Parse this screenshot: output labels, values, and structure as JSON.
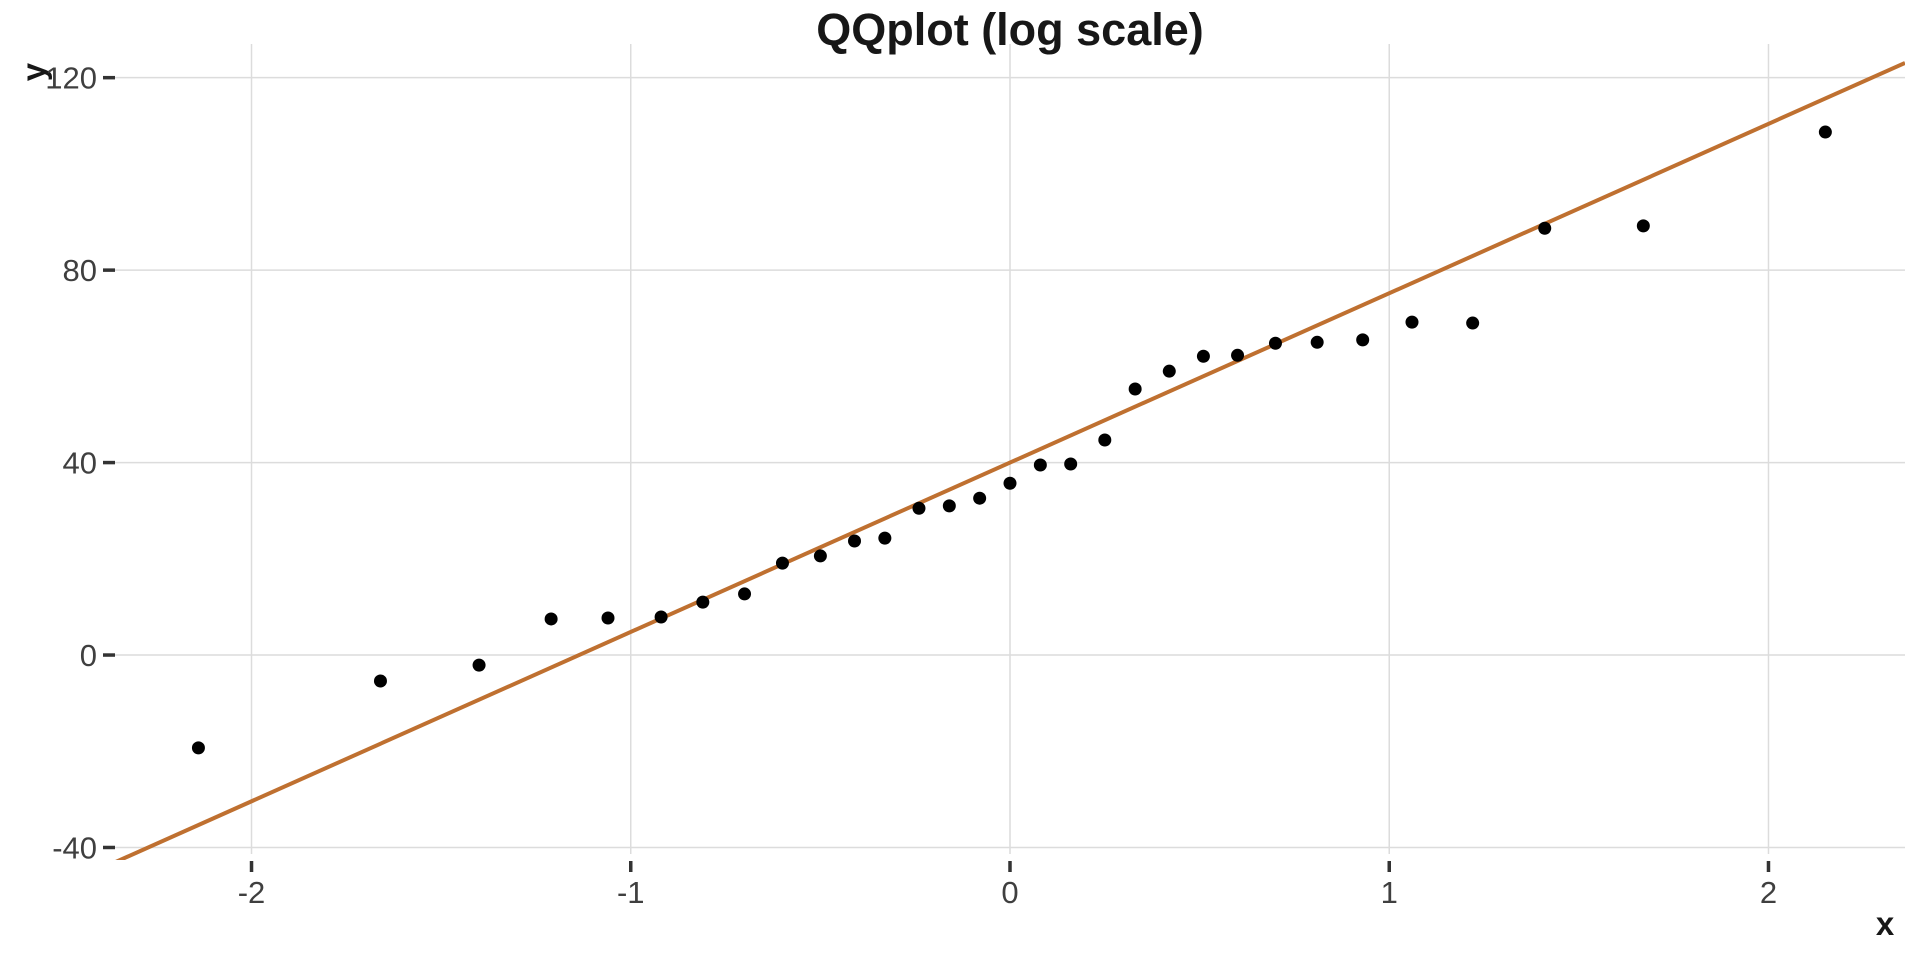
{
  "colors": {
    "background": "#ffffff",
    "grid": "#dcdcdc",
    "tick_mark": "#333333",
    "tick_label": "#3f3f3f",
    "title": "#171717",
    "axis_title": "#171717",
    "point": "#000000",
    "reference_line": "#bf7030"
  },
  "chart_data": {
    "type": "scatter",
    "title": "QQplot (log scale)",
    "xlabel": "x",
    "ylabel": "y",
    "xlim": [
      -2.36,
      2.36
    ],
    "ylim": [
      -42.6,
      127.0
    ],
    "x_ticks": [
      -2,
      -1,
      0,
      1,
      2
    ],
    "y_ticks": [
      -40,
      0,
      40,
      80,
      120
    ],
    "grid": "major-only",
    "legend": "none",
    "points": [
      [
        -2.14,
        -19.3
      ],
      [
        -1.66,
        -5.4
      ],
      [
        -1.4,
        -2.1
      ],
      [
        -1.21,
        7.5
      ],
      [
        -1.06,
        7.7
      ],
      [
        -0.92,
        7.9
      ],
      [
        -0.81,
        11.0
      ],
      [
        -0.7,
        12.7
      ],
      [
        -0.6,
        19.1
      ],
      [
        -0.5,
        20.6
      ],
      [
        -0.41,
        23.7
      ],
      [
        -0.33,
        24.3
      ],
      [
        -0.24,
        30.5
      ],
      [
        -0.16,
        31.0
      ],
      [
        -0.08,
        32.6
      ],
      [
        0.0,
        35.7
      ],
      [
        0.08,
        39.5
      ],
      [
        0.16,
        39.7
      ],
      [
        0.25,
        44.7
      ],
      [
        0.33,
        55.3
      ],
      [
        0.42,
        59.0
      ],
      [
        0.51,
        62.1
      ],
      [
        0.6,
        62.3
      ],
      [
        0.7,
        64.8
      ],
      [
        0.81,
        65.0
      ],
      [
        0.93,
        65.5
      ],
      [
        1.06,
        69.2
      ],
      [
        1.22,
        69.0
      ],
      [
        1.41,
        88.7
      ],
      [
        1.67,
        89.2
      ],
      [
        2.15,
        108.7
      ]
    ],
    "reference_line": {
      "slope": 35.2,
      "intercept": 40.0
    }
  }
}
